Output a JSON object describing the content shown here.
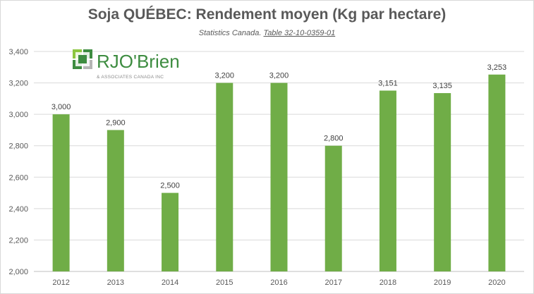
{
  "chart_data": {
    "type": "bar",
    "title": "Soja QUÉBEC: Rendement moyen (Kg par hectare)",
    "subtitle_prefix": "Statistics Canada. ",
    "subtitle_link": "Table 32-10-0359-01",
    "categories": [
      "2012",
      "2013",
      "2014",
      "2015",
      "2016",
      "2017",
      "2018",
      "2019",
      "2020"
    ],
    "values": [
      3000,
      2900,
      2500,
      3200,
      3200,
      2800,
      3151,
      3135,
      3253
    ],
    "value_labels": [
      "3,000",
      "2,900",
      "2,500",
      "3,200",
      "3,200",
      "2,800",
      "3,151",
      "3,135",
      "3,253"
    ],
    "ylim": [
      2000,
      3400
    ],
    "yticks": [
      2000,
      2200,
      2400,
      2600,
      2800,
      3000,
      3200,
      3400
    ],
    "ytick_labels": [
      "2,000",
      "2,200",
      "2,400",
      "2,600",
      "2,800",
      "3,000",
      "3,200",
      "3,400"
    ],
    "grid": true,
    "bar_color": "#70ad47",
    "grid_color": "#d9d9d9"
  },
  "logo": {
    "name": "RJO'Brien",
    "tagline": "& ASSOCIATES CANADA INC"
  }
}
